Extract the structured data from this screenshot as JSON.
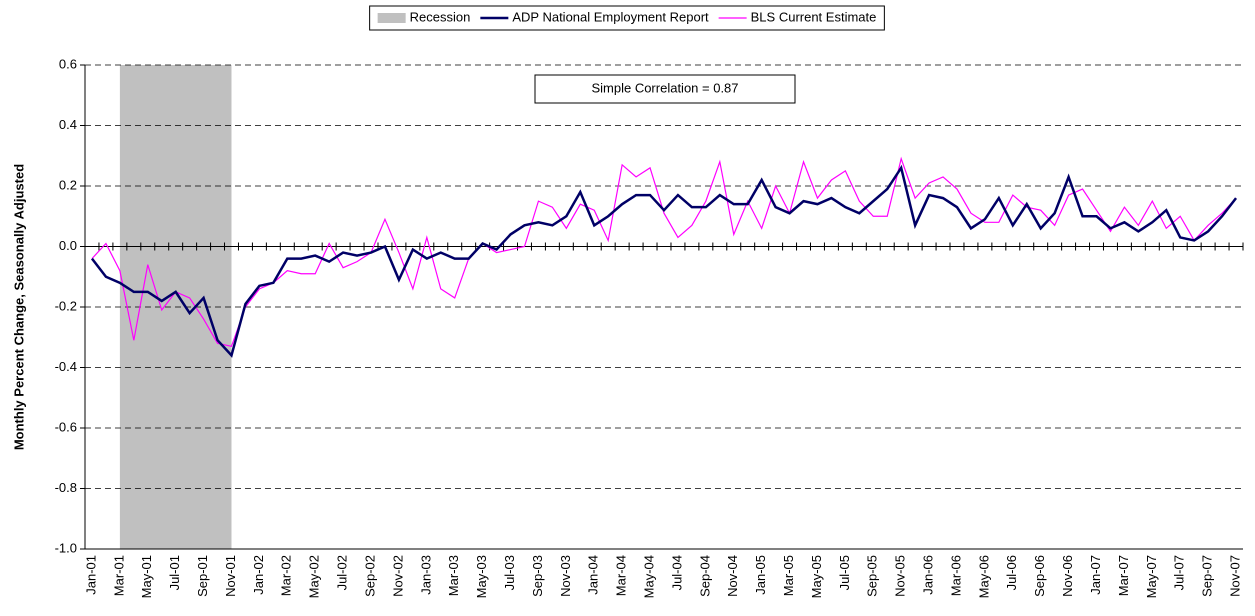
{
  "chart_data": {
    "type": "line",
    "y_label": "Monthly Percent Change, Seasonally Adjusted",
    "annotation": "Simple Correlation = 0.87",
    "categories": [
      "Jan-01",
      null,
      "Mar-01",
      null,
      "May-01",
      null,
      "Jul-01",
      null,
      "Sep-01",
      null,
      "Nov-01",
      null,
      "Jan-02",
      null,
      "Mar-02",
      null,
      "May-02",
      null,
      "Jul-02",
      null,
      "Sep-02",
      null,
      "Nov-02",
      null,
      "Jan-03",
      null,
      "Mar-03",
      null,
      "May-03",
      null,
      "Jul-03",
      null,
      "Sep-03",
      null,
      "Nov-03",
      null,
      "Jan-04",
      null,
      "Mar-04",
      null,
      "May-04",
      null,
      "Jul-04",
      null,
      "Sep-04",
      null,
      "Nov-04",
      null,
      "Jan-05",
      null,
      "Mar-05",
      null,
      "May-05",
      null,
      "Jul-05",
      null,
      "Sep-05",
      null,
      "Nov-05",
      null,
      "Jan-06",
      null,
      "Mar-06",
      null,
      "May-06",
      null,
      "Jul-06",
      null,
      "Sep-06",
      null,
      "Nov-06",
      null,
      "Jan-07",
      null,
      "Mar-07",
      null,
      "May-07",
      null,
      "Jul-07",
      null,
      "Sep-07",
      null,
      "Nov-07"
    ],
    "recession": {
      "name": "Recession",
      "color": "#c0c0c0",
      "start": "Mar-01",
      "end": "Nov-01"
    },
    "series": [
      {
        "name": "ADP National Employment Report",
        "color": "#000066",
        "values": [
          -0.04,
          -0.1,
          -0.12,
          -0.15,
          -0.15,
          -0.18,
          -0.15,
          -0.22,
          -0.17,
          -0.31,
          -0.36,
          -0.19,
          -0.13,
          -0.12,
          -0.04,
          -0.04,
          -0.03,
          -0.05,
          -0.02,
          -0.03,
          -0.02,
          0.0,
          -0.11,
          -0.01,
          -0.04,
          -0.02,
          -0.04,
          -0.04,
          0.01,
          -0.01,
          0.04,
          0.07,
          0.08,
          0.07,
          0.1,
          0.18,
          0.07,
          0.1,
          0.14,
          0.17,
          0.17,
          0.12,
          0.17,
          0.13,
          0.13,
          0.17,
          0.14,
          0.14,
          0.22,
          0.13,
          0.11,
          0.15,
          0.14,
          0.16,
          0.13,
          0.11,
          0.15,
          0.19,
          0.26,
          0.07,
          0.17,
          0.16,
          0.13,
          0.06,
          0.09,
          0.16,
          0.07,
          0.14,
          0.06,
          0.11,
          0.23,
          0.1,
          0.1,
          0.06,
          0.08,
          0.05,
          0.08,
          0.12,
          0.03,
          0.02,
          0.05,
          0.1,
          0.16
        ]
      },
      {
        "name": "BLS Current Estimate",
        "color": "#ff00ff",
        "values": [
          -0.04,
          0.01,
          -0.08,
          -0.31,
          -0.06,
          -0.21,
          -0.15,
          -0.17,
          -0.24,
          -0.32,
          -0.33,
          -0.2,
          -0.14,
          -0.12,
          -0.08,
          -0.09,
          -0.09,
          0.01,
          -0.07,
          -0.05,
          -0.02,
          0.09,
          -0.02,
          -0.14,
          0.03,
          -0.14,
          -0.17,
          -0.04,
          0.01,
          -0.02,
          -0.01,
          0.0,
          0.15,
          0.13,
          0.06,
          0.14,
          0.12,
          0.02,
          0.27,
          0.23,
          0.26,
          0.11,
          0.03,
          0.07,
          0.15,
          0.28,
          0.04,
          0.15,
          0.06,
          0.2,
          0.11,
          0.28,
          0.16,
          0.22,
          0.25,
          0.15,
          0.1,
          0.1,
          0.29,
          0.16,
          0.21,
          0.23,
          0.19,
          0.11,
          0.08,
          0.08,
          0.17,
          0.13,
          0.12,
          0.07,
          0.17,
          0.19,
          0.12,
          0.05,
          0.13,
          0.07,
          0.15,
          0.06,
          0.1,
          0.02,
          0.07,
          0.11,
          0.16
        ]
      }
    ],
    "ylim": [
      -1,
      0.6
    ],
    "yticks": [
      0.6,
      0.4,
      0.2,
      {
        "value": 0,
        "label": "0.0"
      },
      -0.2,
      -0.4,
      -0.6,
      -0.8,
      {
        "value": -1,
        "label": "-1.0"
      }
    ],
    "grid": true
  }
}
